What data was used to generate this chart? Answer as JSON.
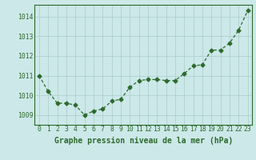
{
  "x": [
    0,
    1,
    2,
    3,
    4,
    5,
    6,
    7,
    8,
    9,
    10,
    11,
    12,
    13,
    14,
    15,
    16,
    17,
    18,
    19,
    20,
    21,
    22,
    23
  ],
  "y": [
    1011.0,
    1010.2,
    1009.6,
    1009.6,
    1009.5,
    1009.0,
    1009.2,
    1009.3,
    1009.7,
    1009.8,
    1010.4,
    1010.75,
    1010.8,
    1010.8,
    1010.75,
    1010.75,
    1011.1,
    1011.5,
    1011.55,
    1012.3,
    1012.3,
    1012.65,
    1013.3,
    1014.3
  ],
  "ylim": [
    1008.5,
    1014.6
  ],
  "xlim": [
    -0.5,
    23.5
  ],
  "yticks": [
    1009,
    1010,
    1011,
    1012,
    1013,
    1014
  ],
  "xticks": [
    0,
    1,
    2,
    3,
    4,
    5,
    6,
    7,
    8,
    9,
    10,
    11,
    12,
    13,
    14,
    15,
    16,
    17,
    18,
    19,
    20,
    21,
    22,
    23
  ],
  "line_color": "#2d6a2d",
  "marker": "D",
  "marker_size": 2.5,
  "bg_color": "#cce8e8",
  "grid_color": "#aacccc",
  "xlabel": "Graphe pression niveau de la mer (hPa)",
  "xlabel_color": "#2d6a2d",
  "tick_color": "#2d6a2d",
  "label_fontsize": 7.0,
  "tick_fontsize": 5.8,
  "spine_color": "#2d6a2d"
}
